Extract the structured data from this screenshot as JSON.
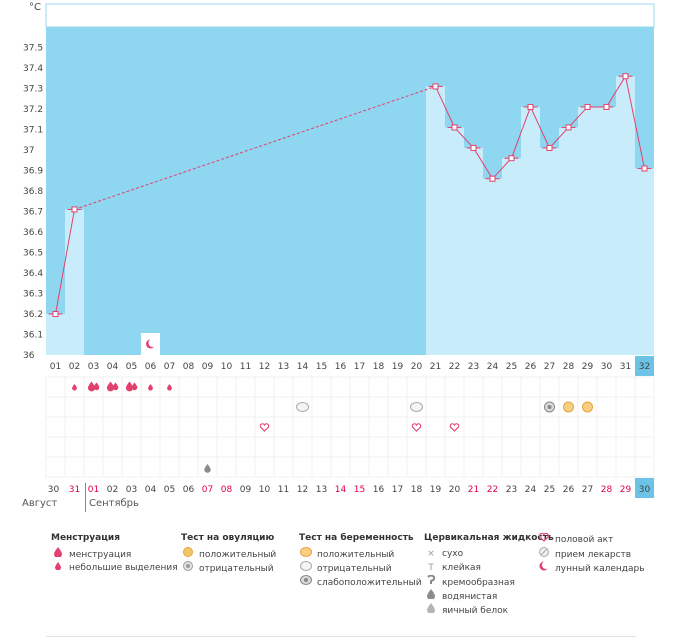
{
  "chart_data": {
    "type": "line",
    "unit": "°C",
    "ylim": [
      36,
      37.6
    ],
    "yticks": [
      "36",
      "36.1",
      "36.2",
      "36.3",
      "36.4",
      "36.5",
      "36.6",
      "36.7",
      "36.8",
      "36.9",
      "37",
      "37.1",
      "37.2",
      "37.3",
      "37.4",
      "37.5"
    ],
    "cycle_days": [
      "01",
      "02",
      "03",
      "04",
      "05",
      "06",
      "07",
      "08",
      "09",
      "10",
      "11",
      "12",
      "13",
      "14",
      "15",
      "16",
      "17",
      "18",
      "19",
      "20",
      "21",
      "22",
      "23",
      "24",
      "25",
      "26",
      "27",
      "28",
      "29",
      "30",
      "31",
      "32"
    ],
    "series": [
      {
        "values": [
          36.2,
          36.71,
          null,
          null,
          null,
          null,
          null,
          null,
          null,
          null,
          null,
          null,
          null,
          null,
          null,
          null,
          null,
          null,
          null,
          null,
          37.31,
          37.11,
          37.01,
          36.86,
          36.96,
          37.21,
          37.01,
          37.11,
          37.21,
          37.21,
          37.36,
          36.91
        ]
      }
    ],
    "moon_day": "06",
    "dates": [
      {
        "d": "30",
        "we": false
      },
      {
        "d": "31",
        "we": true
      },
      {
        "d": "01",
        "we": true
      },
      {
        "d": "02",
        "we": false
      },
      {
        "d": "03",
        "we": false
      },
      {
        "d": "04",
        "we": false
      },
      {
        "d": "05",
        "we": false
      },
      {
        "d": "06",
        "we": false
      },
      {
        "d": "07",
        "we": true
      },
      {
        "d": "08",
        "we": true
      },
      {
        "d": "09",
        "we": false
      },
      {
        "d": "10",
        "we": false
      },
      {
        "d": "11",
        "we": false
      },
      {
        "d": "12",
        "we": false
      },
      {
        "d": "13",
        "we": false
      },
      {
        "d": "14",
        "we": true
      },
      {
        "d": "15",
        "we": true
      },
      {
        "d": "16",
        "we": false
      },
      {
        "d": "17",
        "we": false
      },
      {
        "d": "18",
        "we": false
      },
      {
        "d": "19",
        "we": false
      },
      {
        "d": "20",
        "we": false
      },
      {
        "d": "21",
        "we": true
      },
      {
        "d": "22",
        "we": true
      },
      {
        "d": "23",
        "we": false
      },
      {
        "d": "24",
        "we": false
      },
      {
        "d": "25",
        "we": false
      },
      {
        "d": "26",
        "we": false
      },
      {
        "d": "27",
        "we": false
      },
      {
        "d": "28",
        "we": true
      },
      {
        "d": "29",
        "we": true
      },
      {
        "d": "30",
        "we": false
      }
    ],
    "months": [
      "Август",
      "Сентябрь"
    ],
    "menstruation": {
      "large": [
        2,
        3,
        4
      ],
      "small": [
        1,
        5,
        6
      ]
    },
    "ovulation_tests": {
      "neutral": [
        13,
        19
      ],
      "weak": [
        26
      ],
      "positive": [
        27,
        28
      ]
    },
    "intercourse": [
      11,
      19,
      21
    ],
    "cervical": {
      "drop": [
        8
      ]
    }
  },
  "legend": {
    "menstruation": {
      "title": "Менструация",
      "items": [
        "менструация",
        "небольшие выделения"
      ]
    },
    "ovulation": {
      "title": "Тест на овуляцию",
      "items": [
        "положительный",
        "отрицательный"
      ]
    },
    "pregnancy": {
      "title": "Тест на беременность",
      "items": [
        "положительный",
        "отрицательный",
        "слабоположительный"
      ]
    },
    "cervical": {
      "title": "Цервикальная жидкость",
      "items": [
        "сухо",
        "клейкая",
        "кремообразная",
        "водянистая",
        "яичный белок"
      ]
    },
    "other": {
      "items": [
        "половой акт",
        "прием лекарств",
        "лунный календарь"
      ]
    }
  },
  "colors": {
    "plot_bg": "#8fd6f1",
    "bar": "#c9ecfb",
    "line": "#e2416d",
    "weekend": "#e20049",
    "highlight": "#6cc3e6"
  },
  "icons": {
    "menstruation": "drop-icon",
    "ovulation": "circle-icon",
    "heart": "heart-icon",
    "moon": "moon-icon",
    "dry": "x-icon",
    "sticky": "t-icon"
  }
}
